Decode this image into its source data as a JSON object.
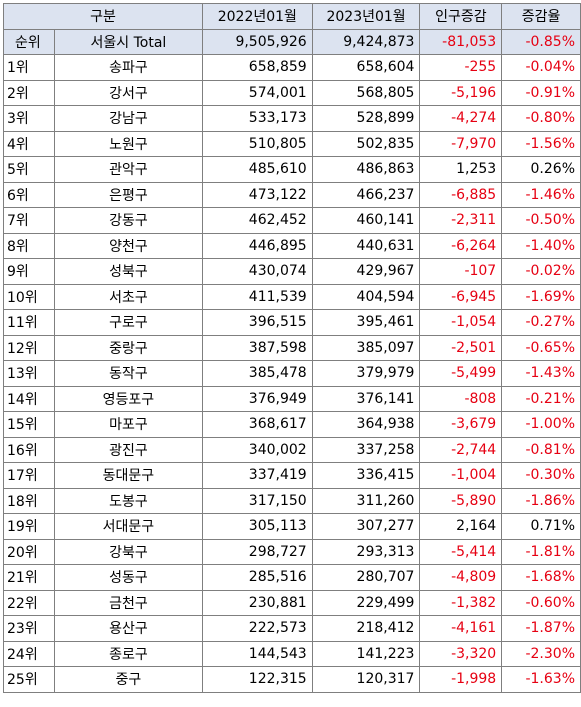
{
  "headers": [
    "구분",
    "2022년01월",
    "2023년01월",
    "인구증감",
    "증감율"
  ],
  "total": {
    "rank_label": "순위",
    "name": "서울시 Total",
    "y2022": "9,505,926",
    "y2023": "9,424,873",
    "change": "-81,053",
    "rate": "-0.85%"
  },
  "rows": [
    {
      "rank": "1위",
      "name": "송파구",
      "y2022": "658,859",
      "y2023": "658,604",
      "change": "-255",
      "rate": "-0.04%"
    },
    {
      "rank": "2위",
      "name": "강서구",
      "y2022": "574,001",
      "y2023": "568,805",
      "change": "-5,196",
      "rate": "-0.91%"
    },
    {
      "rank": "3위",
      "name": "강남구",
      "y2022": "533,173",
      "y2023": "528,899",
      "change": "-4,274",
      "rate": "-0.80%"
    },
    {
      "rank": "4위",
      "name": "노원구",
      "y2022": "510,805",
      "y2023": "502,835",
      "change": "-7,970",
      "rate": "-1.56%"
    },
    {
      "rank": "5위",
      "name": "관악구",
      "y2022": "485,610",
      "y2023": "486,863",
      "change": "1,253",
      "rate": "0.26%"
    },
    {
      "rank": "6위",
      "name": "은평구",
      "y2022": "473,122",
      "y2023": "466,237",
      "change": "-6,885",
      "rate": "-1.46%"
    },
    {
      "rank": "7위",
      "name": "강동구",
      "y2022": "462,452",
      "y2023": "460,141",
      "change": "-2,311",
      "rate": "-0.50%"
    },
    {
      "rank": "8위",
      "name": "양천구",
      "y2022": "446,895",
      "y2023": "440,631",
      "change": "-6,264",
      "rate": "-1.40%"
    },
    {
      "rank": "9위",
      "name": "성북구",
      "y2022": "430,074",
      "y2023": "429,967",
      "change": "-107",
      "rate": "-0.02%"
    },
    {
      "rank": "10위",
      "name": "서초구",
      "y2022": "411,539",
      "y2023": "404,594",
      "change": "-6,945",
      "rate": "-1.69%"
    },
    {
      "rank": "11위",
      "name": "구로구",
      "y2022": "396,515",
      "y2023": "395,461",
      "change": "-1,054",
      "rate": "-0.27%"
    },
    {
      "rank": "12위",
      "name": "중랑구",
      "y2022": "387,598",
      "y2023": "385,097",
      "change": "-2,501",
      "rate": "-0.65%"
    },
    {
      "rank": "13위",
      "name": "동작구",
      "y2022": "385,478",
      "y2023": "379,979",
      "change": "-5,499",
      "rate": "-1.43%"
    },
    {
      "rank": "14위",
      "name": "영등포구",
      "y2022": "376,949",
      "y2023": "376,141",
      "change": "-808",
      "rate": "-0.21%"
    },
    {
      "rank": "15위",
      "name": "마포구",
      "y2022": "368,617",
      "y2023": "364,938",
      "change": "-3,679",
      "rate": "-1.00%"
    },
    {
      "rank": "16위",
      "name": "광진구",
      "y2022": "340,002",
      "y2023": "337,258",
      "change": "-2,744",
      "rate": "-0.81%"
    },
    {
      "rank": "17위",
      "name": "동대문구",
      "y2022": "337,419",
      "y2023": "336,415",
      "change": "-1,004",
      "rate": "-0.30%"
    },
    {
      "rank": "18위",
      "name": "도봉구",
      "y2022": "317,150",
      "y2023": "311,260",
      "change": "-5,890",
      "rate": "-1.86%"
    },
    {
      "rank": "19위",
      "name": "서대문구",
      "y2022": "305,113",
      "y2023": "307,277",
      "change": "2,164",
      "rate": "0.71%"
    },
    {
      "rank": "20위",
      "name": "강북구",
      "y2022": "298,727",
      "y2023": "293,313",
      "change": "-5,414",
      "rate": "-1.81%"
    },
    {
      "rank": "21위",
      "name": "성동구",
      "y2022": "285,516",
      "y2023": "280,707",
      "change": "-4,809",
      "rate": "-1.68%"
    },
    {
      "rank": "22위",
      "name": "금천구",
      "y2022": "230,881",
      "y2023": "229,499",
      "change": "-1,382",
      "rate": "-0.60%"
    },
    {
      "rank": "23위",
      "name": "용산구",
      "y2022": "222,573",
      "y2023": "218,412",
      "change": "-4,161",
      "rate": "-1.87%"
    },
    {
      "rank": "24위",
      "name": "종로구",
      "y2022": "144,543",
      "y2023": "141,223",
      "change": "-3,320",
      "rate": "-2.30%"
    },
    {
      "rank": "25위",
      "name": "중구",
      "y2022": "122,315",
      "y2023": "120,317",
      "change": "-1,998",
      "rate": "-1.63%"
    }
  ],
  "colors": {
    "header_bg": "#dce3f0",
    "negative": "#e60012",
    "border": "#7f7f7f"
  }
}
